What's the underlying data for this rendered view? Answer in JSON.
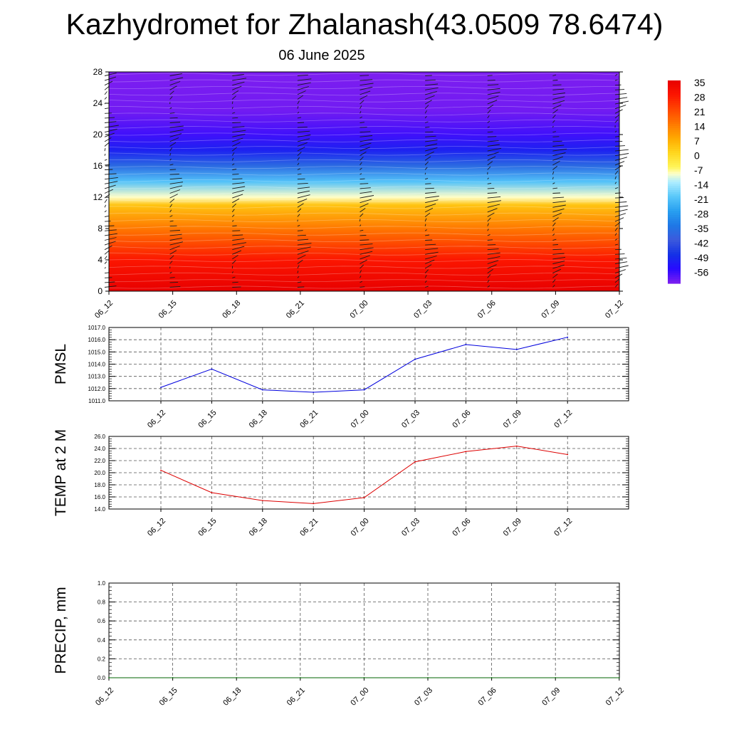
{
  "title": "Kazhydromet for Zhalanash(43.0509 78.6474)",
  "subtitle": "06 June 2025",
  "chart_data": [
    {
      "type": "heatmap",
      "name": "temperature-cross-section",
      "x_tick_labels": [
        "06_12",
        "06_15",
        "06_18",
        "06_21",
        "07_00",
        "07_03",
        "07_06",
        "07_09",
        "07_12"
      ],
      "y_ticks": [
        0,
        4,
        8,
        12,
        16,
        20,
        24,
        28
      ],
      "ylim": [
        0,
        28
      ],
      "grid": false,
      "colorbar": {
        "labels": [
          35,
          28,
          21,
          14,
          7,
          0,
          -7,
          -14,
          -21,
          -28,
          -35,
          -42,
          -49,
          -56
        ],
        "range": [
          -63,
          35
        ],
        "placement": "right"
      },
      "temperature_profile": [
        {
          "level": 0,
          "value": 35
        },
        {
          "level": 4,
          "value": 28
        },
        {
          "level": 8,
          "value": 14
        },
        {
          "level": 11,
          "value": 3
        },
        {
          "level": 12,
          "value": -10
        },
        {
          "level": 14,
          "value": -22
        },
        {
          "level": 16,
          "value": -38
        },
        {
          "level": 18,
          "value": -52
        },
        {
          "level": 20,
          "value": -58
        },
        {
          "level": 23,
          "value": -62
        },
        {
          "level": 28,
          "value": -63
        }
      ],
      "wind_barbs": true
    },
    {
      "type": "line",
      "ylabel": "PMSL",
      "x": [
        "06_12",
        "06_15",
        "06_18",
        "06_21",
        "07_00",
        "07_03",
        "07_06",
        "07_09",
        "07_12"
      ],
      "series": [
        {
          "color": "#0000dd",
          "values": [
            1012.1,
            1013.6,
            1011.9,
            1011.7,
            1011.9,
            1014.4,
            1015.6,
            1015.2,
            1016.2
          ]
        }
      ],
      "ylim": [
        1011.0,
        1017.0
      ],
      "y_ticks": [
        "1011.0",
        "1012.0",
        "1013.0",
        "1014.0",
        "1015.0",
        "1016.0",
        "1017.0"
      ],
      "grid": true
    },
    {
      "type": "line",
      "ylabel": "TEMP at 2 M",
      "x": [
        "06_12",
        "06_15",
        "06_18",
        "06_21",
        "07_00",
        "07_03",
        "07_06",
        "07_09",
        "07_12"
      ],
      "series": [
        {
          "color": "#dd0000",
          "values": [
            20.4,
            16.7,
            15.4,
            14.9,
            15.9,
            21.8,
            23.5,
            24.4,
            23.0
          ]
        }
      ],
      "ylim": [
        14.0,
        26.0
      ],
      "y_ticks": [
        "14.0",
        "16.0",
        "18.0",
        "20.0",
        "22.0",
        "24.0",
        "26.0"
      ],
      "grid": true
    },
    {
      "type": "line",
      "ylabel": "PRECIP, mm",
      "x": [
        "06_12",
        "06_15",
        "06_18",
        "06_21",
        "07_00",
        "07_03",
        "07_06",
        "07_09",
        "07_12"
      ],
      "series": [
        {
          "color": "#006400",
          "values": [
            0,
            0,
            0,
            0,
            0,
            0,
            0,
            0,
            0
          ]
        }
      ],
      "ylim": [
        0.0,
        1.0
      ],
      "y_ticks": [
        "0.0",
        "0.2",
        "0.4",
        "0.6",
        "0.8",
        "1.0"
      ],
      "grid": true
    }
  ]
}
